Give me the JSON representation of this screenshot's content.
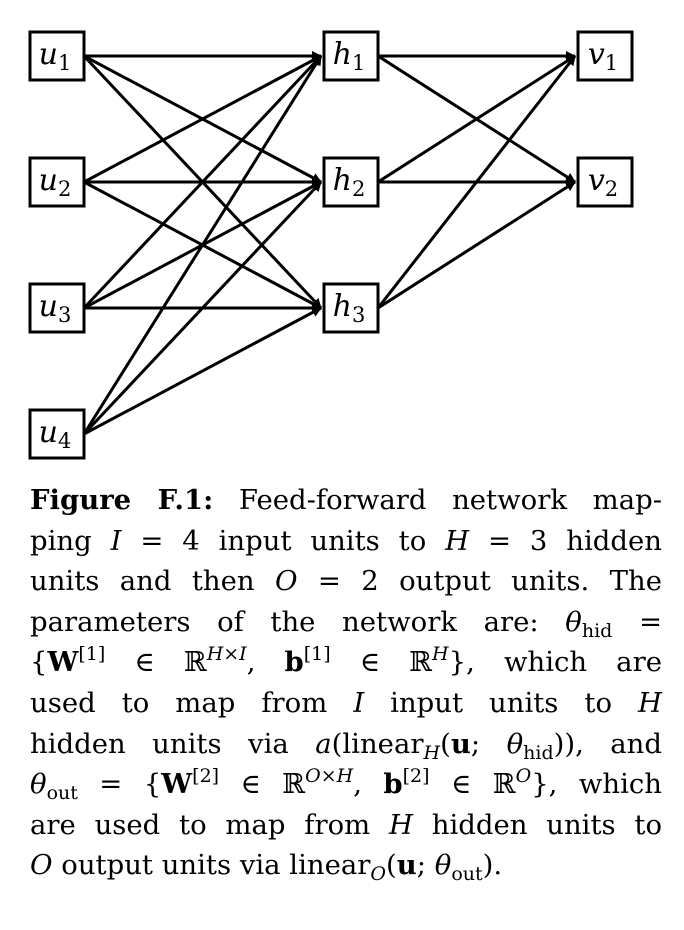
{
  "diagram": {
    "input_nodes": [
      {
        "base": "u",
        "sub": "1"
      },
      {
        "base": "u",
        "sub": "2"
      },
      {
        "base": "u",
        "sub": "3"
      },
      {
        "base": "u",
        "sub": "4"
      }
    ],
    "hidden_nodes": [
      {
        "base": "h",
        "sub": "1"
      },
      {
        "base": "h",
        "sub": "2"
      },
      {
        "base": "h",
        "sub": "3"
      }
    ],
    "output_nodes": [
      {
        "base": "v",
        "sub": "1"
      },
      {
        "base": "v",
        "sub": "2"
      }
    ],
    "edges": "fully-connected input→hidden→output"
  },
  "caption": {
    "figure_label": "Figure F.1:",
    "l1": "Feed-forward network map-",
    "l2_a": "ping ",
    "l2_I": "I",
    "l2_b": " = 4 input units to ",
    "l2_H": "H",
    "l2_c": " = 3 hidden",
    "l3_a": "units and then ",
    "l3_O": "O",
    "l3_b": " = 2 output units. The",
    "l4_a": "parameters of the network are: ",
    "l4_theta": "θ",
    "l4_sub": "hid",
    "l4_b": " =",
    "l5_a": "{",
    "l5_W": "W",
    "l5_sup1": "[1]",
    "l5_in": " ∈ ℝ",
    "l5_sup2": "H×I",
    "l5_comma": ", ",
    "l5_b": "b",
    "l5_sup3": "[1]",
    "l5_in2": " ∈ ℝ",
    "l5_sup4": "H",
    "l5_close": "}, which are",
    "l6_a": "used to map from ",
    "l6_I": "I",
    "l6_b": " input units to ",
    "l6_H": "H",
    "l7_a": "hidden units via ",
    "l7_fn": "a",
    "l7_b": "(linear",
    "l7_sub": "H",
    "l7_c": "(",
    "l7_u": "u",
    "l7_d": "; ",
    "l7_theta": "θ",
    "l7_sub2": "hid",
    "l7_e": ")), and",
    "l8_theta": "θ",
    "l8_sub": "out",
    "l8_a": " = {",
    "l8_W": "W",
    "l8_sup1": "[2]",
    "l8_in": " ∈ ℝ",
    "l8_sup2": "O×H",
    "l8_comma": ", ",
    "l8_b": "b",
    "l8_sup3": "[2]",
    "l8_in2": " ∈ ℝ",
    "l8_sup4": "O",
    "l8_close": "}, which",
    "l9_a": "are used to map from ",
    "l9_H": "H",
    "l9_b": " hidden units to",
    "l10_O": "O",
    "l10_a": " output units via linear",
    "l10_sub": "O",
    "l10_b": "(",
    "l10_u": "u",
    "l10_c": "; ",
    "l10_theta": "θ",
    "l10_sub2": "out",
    "l10_d": ")."
  }
}
